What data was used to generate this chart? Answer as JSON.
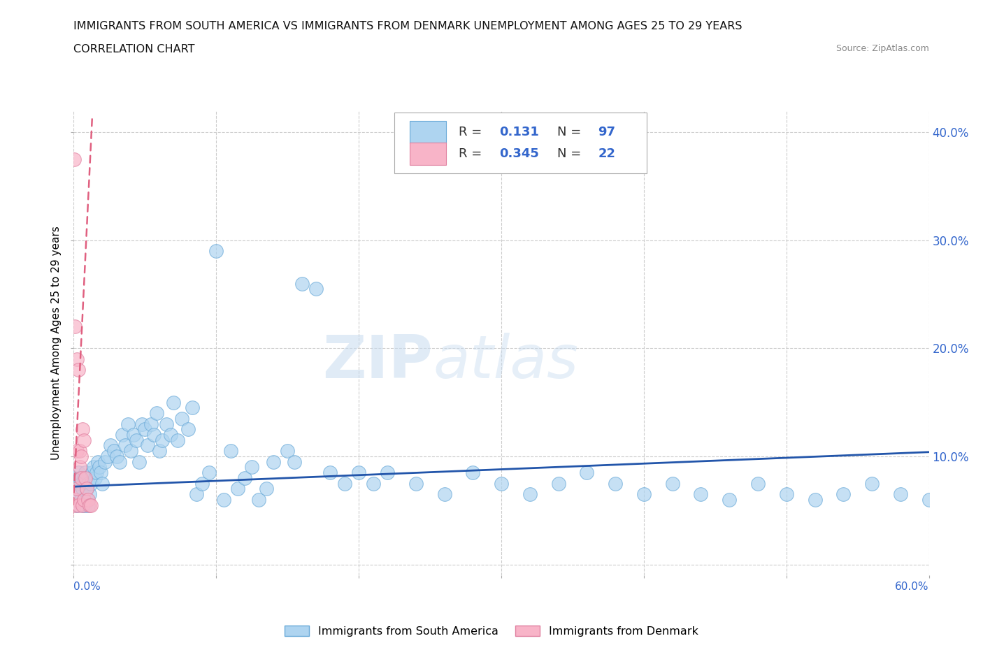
{
  "title_line1": "IMMIGRANTS FROM SOUTH AMERICA VS IMMIGRANTS FROM DENMARK UNEMPLOYMENT AMONG AGES 25 TO 29 YEARS",
  "title_line2": "CORRELATION CHART",
  "source": "Source: ZipAtlas.com",
  "ylabel": "Unemployment Among Ages 25 to 29 years",
  "xlim": [
    0.0,
    0.6
  ],
  "ylim": [
    -0.01,
    0.42
  ],
  "yticks": [
    0.0,
    0.1,
    0.2,
    0.3,
    0.4
  ],
  "ytick_labels": [
    "",
    "10.0%",
    "20.0%",
    "30.0%",
    "40.0%"
  ],
  "series1_color": "#AED4F0",
  "series1_edge": "#6AAAD8",
  "series2_color": "#F8B4C8",
  "series2_edge": "#E080A0",
  "trend1_color": "#2255AA",
  "trend2_color": "#E06080",
  "legend_color": "#3366CC",
  "R1": 0.131,
  "N1": 97,
  "R2": 0.345,
  "N2": 22,
  "legend_label1": "Immigrants from South America",
  "legend_label2": "Immigrants from Denmark",
  "watermark": "ZIPatlas",
  "sa_x": [
    0.001,
    0.002,
    0.002,
    0.003,
    0.003,
    0.004,
    0.004,
    0.005,
    0.005,
    0.006,
    0.006,
    0.007,
    0.007,
    0.008,
    0.008,
    0.009,
    0.009,
    0.01,
    0.01,
    0.011,
    0.012,
    0.013,
    0.014,
    0.015,
    0.016,
    0.017,
    0.018,
    0.019,
    0.02,
    0.022,
    0.024,
    0.026,
    0.028,
    0.03,
    0.032,
    0.034,
    0.036,
    0.038,
    0.04,
    0.042,
    0.044,
    0.046,
    0.048,
    0.05,
    0.052,
    0.054,
    0.056,
    0.058,
    0.06,
    0.062,
    0.065,
    0.068,
    0.07,
    0.073,
    0.076,
    0.08,
    0.083,
    0.086,
    0.09,
    0.095,
    0.1,
    0.105,
    0.11,
    0.115,
    0.12,
    0.125,
    0.13,
    0.135,
    0.14,
    0.15,
    0.155,
    0.16,
    0.17,
    0.18,
    0.19,
    0.2,
    0.21,
    0.22,
    0.24,
    0.26,
    0.28,
    0.3,
    0.32,
    0.34,
    0.36,
    0.38,
    0.4,
    0.42,
    0.44,
    0.46,
    0.48,
    0.5,
    0.52,
    0.54,
    0.56,
    0.58,
    0.6
  ],
  "sa_y": [
    0.08,
    0.055,
    0.075,
    0.06,
    0.085,
    0.065,
    0.08,
    0.06,
    0.075,
    0.055,
    0.07,
    0.06,
    0.08,
    0.055,
    0.085,
    0.06,
    0.07,
    0.075,
    0.055,
    0.065,
    0.075,
    0.085,
    0.09,
    0.08,
    0.085,
    0.095,
    0.09,
    0.085,
    0.075,
    0.095,
    0.1,
    0.11,
    0.105,
    0.1,
    0.095,
    0.12,
    0.11,
    0.13,
    0.105,
    0.12,
    0.115,
    0.095,
    0.13,
    0.125,
    0.11,
    0.13,
    0.12,
    0.14,
    0.105,
    0.115,
    0.13,
    0.12,
    0.15,
    0.115,
    0.135,
    0.125,
    0.145,
    0.065,
    0.075,
    0.085,
    0.29,
    0.06,
    0.105,
    0.07,
    0.08,
    0.09,
    0.06,
    0.07,
    0.095,
    0.105,
    0.095,
    0.26,
    0.255,
    0.085,
    0.075,
    0.085,
    0.075,
    0.085,
    0.075,
    0.065,
    0.085,
    0.075,
    0.065,
    0.075,
    0.085,
    0.075,
    0.065,
    0.075,
    0.065,
    0.06,
    0.075,
    0.065,
    0.06,
    0.065,
    0.075,
    0.065,
    0.06
  ],
  "dk_x": [
    0.0005,
    0.0005,
    0.001,
    0.001,
    0.002,
    0.002,
    0.002,
    0.003,
    0.003,
    0.004,
    0.004,
    0.005,
    0.005,
    0.006,
    0.006,
    0.007,
    0.007,
    0.008,
    0.009,
    0.01,
    0.011,
    0.012
  ],
  "dk_y": [
    0.055,
    0.375,
    0.06,
    0.22,
    0.07,
    0.19,
    0.105,
    0.18,
    0.055,
    0.09,
    0.105,
    0.08,
    0.1,
    0.125,
    0.055,
    0.06,
    0.115,
    0.08,
    0.07,
    0.06,
    0.055,
    0.055
  ],
  "trend1_x": [
    0.0,
    0.6
  ],
  "trend1_y": [
    0.072,
    0.104
  ],
  "trend2_x": [
    -0.002,
    0.013
  ],
  "trend2_y": [
    0.01,
    0.415
  ]
}
